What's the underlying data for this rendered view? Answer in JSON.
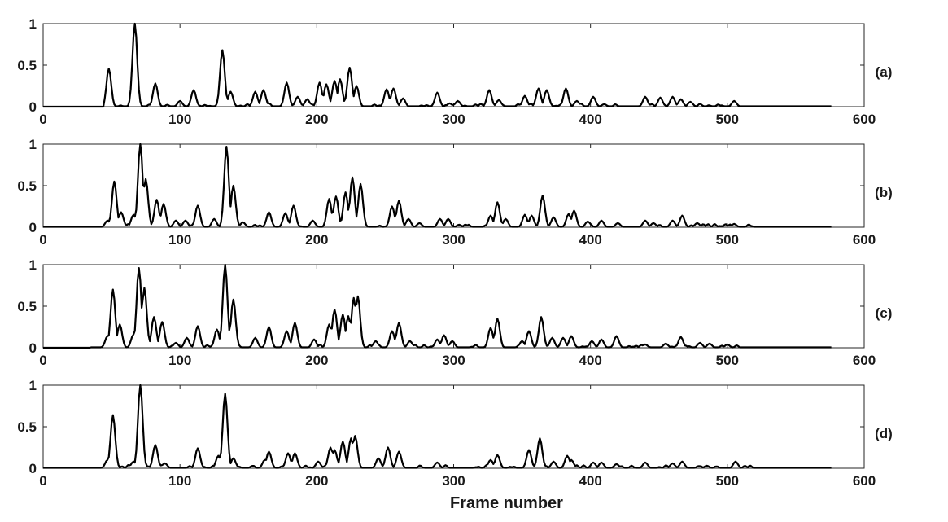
{
  "chart_data": {
    "type": "line",
    "xlabel": "Frame number",
    "xlim": [
      0,
      600
    ],
    "xticks": [
      "0",
      "100",
      "200",
      "300",
      "400",
      "500",
      "600"
    ],
    "ylim": [
      0,
      1
    ],
    "yticks": [
      "0",
      "0.5",
      "1"
    ],
    "grid": false,
    "panels": [
      {
        "label": "(a)",
        "peaks": [
          [
            48,
            0.46
          ],
          [
            67,
            1.0
          ],
          [
            82,
            0.28
          ],
          [
            100,
            0.07
          ],
          [
            110,
            0.2
          ],
          [
            131,
            0.68
          ],
          [
            137,
            0.18
          ],
          [
            155,
            0.18
          ],
          [
            161,
            0.2
          ],
          [
            178,
            0.29
          ],
          [
            186,
            0.12
          ],
          [
            193,
            0.09
          ],
          [
            202,
            0.29
          ],
          [
            207,
            0.27
          ],
          [
            213,
            0.31
          ],
          [
            217,
            0.33
          ],
          [
            224,
            0.47
          ],
          [
            229,
            0.25
          ],
          [
            251,
            0.21
          ],
          [
            256,
            0.22
          ],
          [
            263,
            0.1
          ],
          [
            288,
            0.17
          ],
          [
            297,
            0.04
          ],
          [
            303,
            0.07
          ],
          [
            326,
            0.2
          ],
          [
            333,
            0.08
          ],
          [
            352,
            0.13
          ],
          [
            362,
            0.22
          ],
          [
            368,
            0.2
          ],
          [
            382,
            0.22
          ],
          [
            390,
            0.07
          ],
          [
            402,
            0.12
          ],
          [
            410,
            0.03
          ],
          [
            440,
            0.12
          ],
          [
            451,
            0.11
          ],
          [
            460,
            0.12
          ],
          [
            466,
            0.09
          ],
          [
            473,
            0.06
          ],
          [
            505,
            0.07
          ]
        ],
        "range": [
          45,
          575
        ]
      },
      {
        "label": "(b)",
        "peaks": [
          [
            47,
            0.08
          ],
          [
            52,
            0.55
          ],
          [
            57,
            0.18
          ],
          [
            66,
            0.15
          ],
          [
            71,
            1.0
          ],
          [
            75,
            0.58
          ],
          [
            83,
            0.33
          ],
          [
            88,
            0.28
          ],
          [
            97,
            0.08
          ],
          [
            104,
            0.08
          ],
          [
            113,
            0.26
          ],
          [
            125,
            0.1
          ],
          [
            134,
            0.97
          ],
          [
            139,
            0.5
          ],
          [
            146,
            0.06
          ],
          [
            165,
            0.18
          ],
          [
            177,
            0.17
          ],
          [
            183,
            0.26
          ],
          [
            197,
            0.08
          ],
          [
            209,
            0.34
          ],
          [
            214,
            0.37
          ],
          [
            221,
            0.42
          ],
          [
            226,
            0.6
          ],
          [
            232,
            0.52
          ],
          [
            255,
            0.25
          ],
          [
            260,
            0.32
          ],
          [
            267,
            0.1
          ],
          [
            275,
            0.05
          ],
          [
            290,
            0.1
          ],
          [
            296,
            0.1
          ],
          [
            304,
            0.03
          ],
          [
            327,
            0.14
          ],
          [
            332,
            0.3
          ],
          [
            338,
            0.1
          ],
          [
            352,
            0.15
          ],
          [
            357,
            0.14
          ],
          [
            365,
            0.38
          ],
          [
            373,
            0.12
          ],
          [
            384,
            0.16
          ],
          [
            388,
            0.2
          ],
          [
            398,
            0.07
          ],
          [
            408,
            0.08
          ],
          [
            420,
            0.05
          ],
          [
            440,
            0.08
          ],
          [
            446,
            0.05
          ],
          [
            460,
            0.08
          ],
          [
            467,
            0.14
          ],
          [
            478,
            0.05
          ],
          [
            505,
            0.04
          ]
        ],
        "range": [
          0,
          575
        ]
      },
      {
        "label": "(c)",
        "peaks": [
          [
            47,
            0.14
          ],
          [
            51,
            0.7
          ],
          [
            56,
            0.28
          ],
          [
            66,
            0.16
          ],
          [
            70,
            0.96
          ],
          [
            74,
            0.72
          ],
          [
            81,
            0.37
          ],
          [
            87,
            0.31
          ],
          [
            97,
            0.06
          ],
          [
            105,
            0.12
          ],
          [
            113,
            0.26
          ],
          [
            127,
            0.22
          ],
          [
            133,
            1.0
          ],
          [
            139,
            0.58
          ],
          [
            155,
            0.12
          ],
          [
            165,
            0.25
          ],
          [
            178,
            0.2
          ],
          [
            184,
            0.3
          ],
          [
            198,
            0.1
          ],
          [
            209,
            0.28
          ],
          [
            213,
            0.46
          ],
          [
            219,
            0.4
          ],
          [
            223,
            0.38
          ],
          [
            227,
            0.6
          ],
          [
            230,
            0.62
          ],
          [
            243,
            0.08
          ],
          [
            255,
            0.2
          ],
          [
            260,
            0.3
          ],
          [
            268,
            0.08
          ],
          [
            288,
            0.1
          ],
          [
            293,
            0.15
          ],
          [
            299,
            0.08
          ],
          [
            327,
            0.24
          ],
          [
            332,
            0.35
          ],
          [
            350,
            0.08
          ],
          [
            355,
            0.2
          ],
          [
            364,
            0.37
          ],
          [
            372,
            0.12
          ],
          [
            380,
            0.12
          ],
          [
            386,
            0.14
          ],
          [
            401,
            0.08
          ],
          [
            408,
            0.1
          ],
          [
            419,
            0.14
          ],
          [
            440,
            0.04
          ],
          [
            455,
            0.05
          ],
          [
            466,
            0.13
          ],
          [
            480,
            0.06
          ],
          [
            487,
            0.05
          ],
          [
            500,
            0.04
          ]
        ],
        "range": [
          35,
          575
        ]
      },
      {
        "label": "(d)",
        "peaks": [
          [
            47,
            0.1
          ],
          [
            51,
            0.64
          ],
          [
            66,
            0.08
          ],
          [
            71,
            1.0
          ],
          [
            82,
            0.28
          ],
          [
            89,
            0.06
          ],
          [
            113,
            0.24
          ],
          [
            128,
            0.15
          ],
          [
            133,
            0.9
          ],
          [
            139,
            0.12
          ],
          [
            162,
            0.1
          ],
          [
            165,
            0.2
          ],
          [
            179,
            0.18
          ],
          [
            184,
            0.18
          ],
          [
            201,
            0.08
          ],
          [
            210,
            0.25
          ],
          [
            213,
            0.22
          ],
          [
            219,
            0.32
          ],
          [
            225,
            0.36
          ],
          [
            228,
            0.39
          ],
          [
            245,
            0.12
          ],
          [
            252,
            0.25
          ],
          [
            260,
            0.2
          ],
          [
            288,
            0.07
          ],
          [
            327,
            0.1
          ],
          [
            332,
            0.16
          ],
          [
            355,
            0.22
          ],
          [
            363,
            0.36
          ],
          [
            373,
            0.08
          ],
          [
            383,
            0.15
          ],
          [
            386,
            0.1
          ],
          [
            402,
            0.07
          ],
          [
            408,
            0.07
          ],
          [
            419,
            0.05
          ],
          [
            440,
            0.07
          ],
          [
            460,
            0.06
          ],
          [
            467,
            0.08
          ],
          [
            485,
            0.03
          ],
          [
            506,
            0.08
          ]
        ],
        "range": [
          0,
          575
        ]
      }
    ]
  }
}
